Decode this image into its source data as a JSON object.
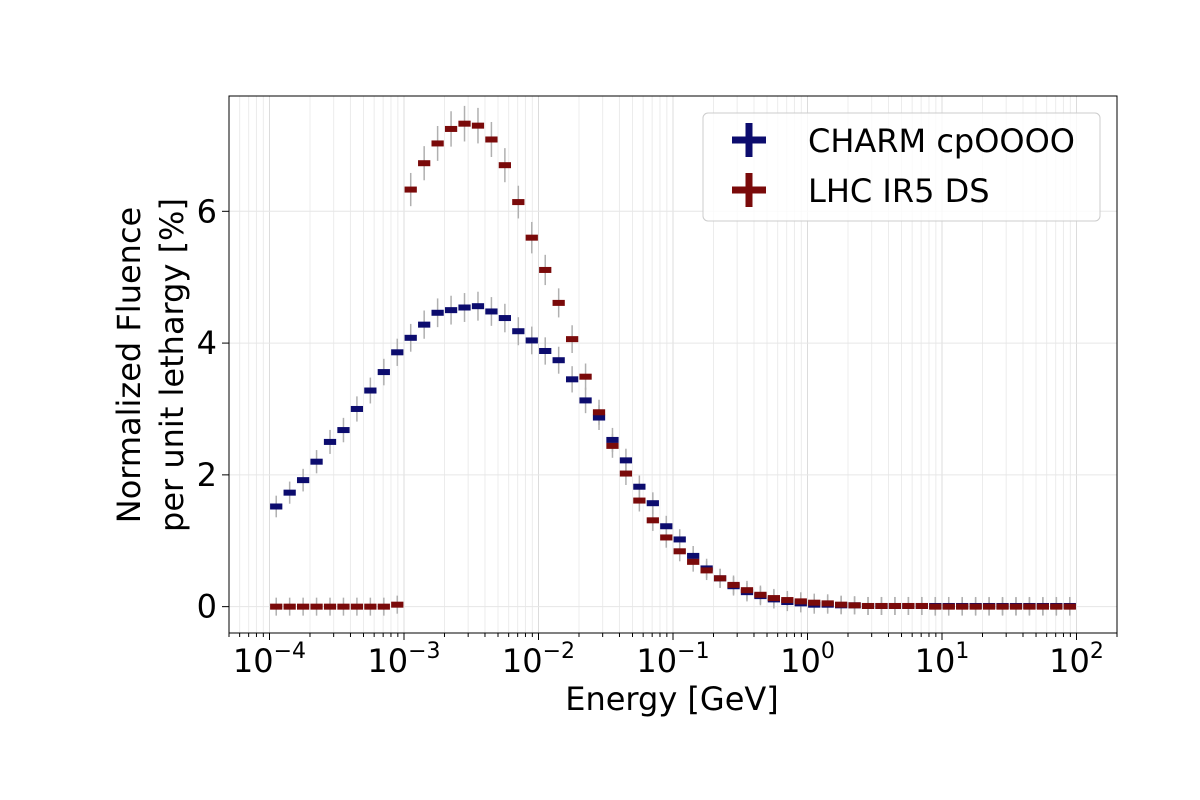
{
  "chart_data": {
    "type": "scatter",
    "xlabel": "Energy [GeV]",
    "ylabel_line1": "Normalized Fluence",
    "ylabel_line2": "per unit lethargy [%]",
    "xscale": "log",
    "xlim": [
      5e-05,
      200
    ],
    "ylim": [
      -0.4,
      7.75
    ],
    "grid": true,
    "legend_position": "top-right",
    "x_ticks": [
      {
        "value": 0.0001,
        "base": "10",
        "exp": "−4"
      },
      {
        "value": 0.001,
        "base": "10",
        "exp": "−3"
      },
      {
        "value": 0.01,
        "base": "10",
        "exp": "−2"
      },
      {
        "value": 0.1,
        "base": "10",
        "exp": "−1"
      },
      {
        "value": 1,
        "base": "10",
        "exp": "0"
      },
      {
        "value": 10,
        "base": "10",
        "exp": "1"
      },
      {
        "value": 100,
        "base": "10",
        "exp": "2"
      }
    ],
    "y_ticks": [
      {
        "value": 0,
        "label": "0"
      },
      {
        "value": 2,
        "label": "2"
      },
      {
        "value": 4,
        "label": "4"
      },
      {
        "value": 6,
        "label": "6"
      }
    ],
    "bins_per_decade": 10,
    "bin_start_exponent": -4,
    "series": [
      {
        "name": "CHARM cpOOOO",
        "color": "#0c0c6e",
        "values": [
          1.52,
          1.73,
          1.92,
          2.2,
          2.5,
          2.68,
          3.0,
          3.28,
          3.56,
          3.86,
          4.08,
          4.28,
          4.46,
          4.5,
          4.54,
          4.56,
          4.48,
          4.38,
          4.18,
          4.04,
          3.88,
          3.74,
          3.45,
          3.13,
          2.87,
          2.53,
          2.22,
          1.82,
          1.57,
          1.22,
          1.02,
          0.77,
          0.58,
          0.43,
          0.31,
          0.22,
          0.16,
          0.11,
          0.07,
          0.05,
          0.03,
          0.03,
          0.02,
          0.02,
          0.01,
          0.01,
          0.01,
          0.01,
          0.01,
          0.01,
          0.01,
          0.01,
          0.01,
          0.01,
          0.01,
          0.01,
          0.01,
          0.01,
          0.01,
          0.01
        ]
      },
      {
        "name": "LHC IR5 DS",
        "color": "#7a0a0a",
        "values": [
          0.0,
          0.0,
          0.0,
          0.0,
          0.0,
          0.0,
          0.0,
          0.0,
          0.0,
          0.03,
          6.33,
          6.73,
          7.03,
          7.25,
          7.33,
          7.3,
          7.09,
          6.7,
          6.14,
          5.6,
          5.11,
          4.61,
          4.06,
          3.49,
          2.95,
          2.44,
          2.02,
          1.61,
          1.31,
          1.05,
          0.84,
          0.68,
          0.55,
          0.43,
          0.33,
          0.25,
          0.18,
          0.13,
          0.1,
          0.08,
          0.06,
          0.05,
          0.03,
          0.02,
          0.01,
          0.01,
          0.01,
          0.01,
          0.01,
          0.0,
          0.0,
          0.0,
          0.0,
          0.0,
          0.0,
          0.0,
          0.0,
          0.0,
          0.0,
          0.0
        ]
      }
    ]
  }
}
